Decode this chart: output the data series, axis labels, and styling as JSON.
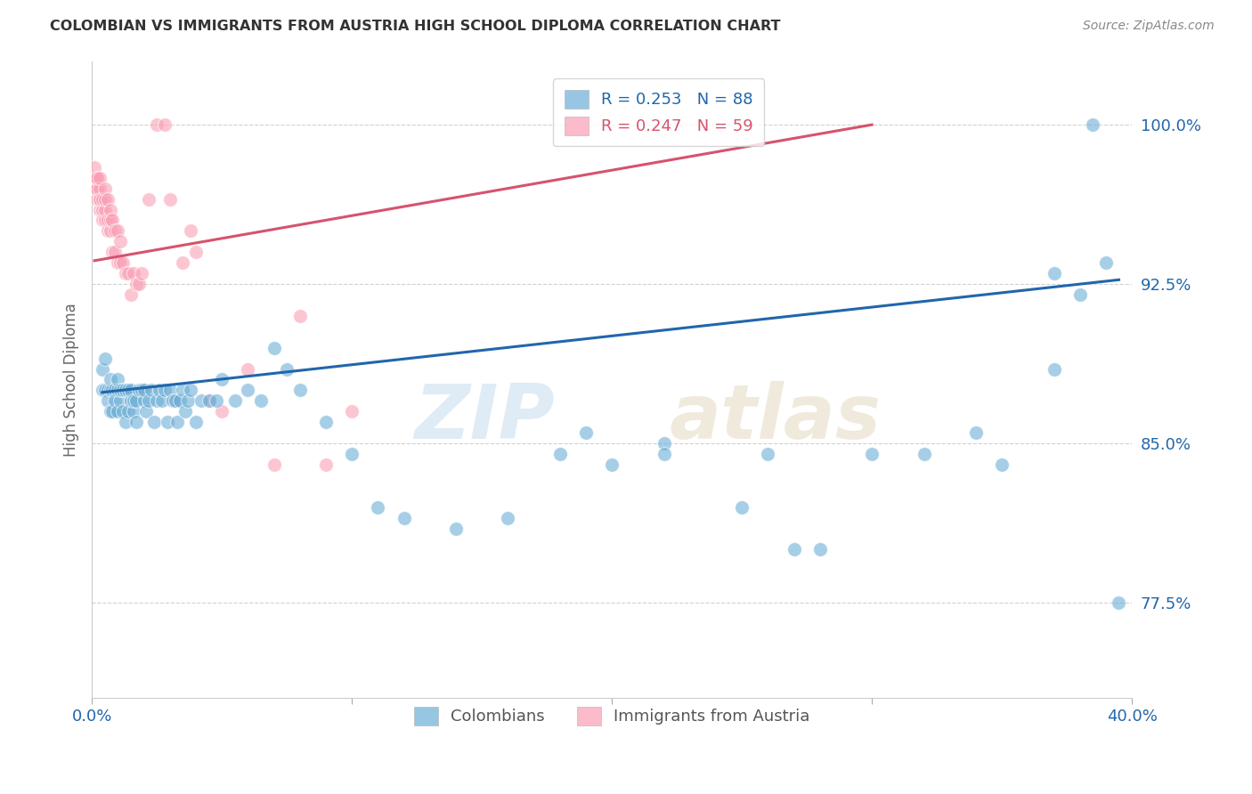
{
  "title": "COLOMBIAN VS IMMIGRANTS FROM AUSTRIA HIGH SCHOOL DIPLOMA CORRELATION CHART",
  "source": "Source: ZipAtlas.com",
  "ylabel": "High School Diploma",
  "ytick_labels": [
    "77.5%",
    "85.0%",
    "92.5%",
    "100.0%"
  ],
  "ytick_values": [
    0.775,
    0.85,
    0.925,
    1.0
  ],
  "xlim": [
    0.0,
    0.4
  ],
  "ylim": [
    0.73,
    1.03
  ],
  "legend_blue_r": "R = 0.253",
  "legend_blue_n": "N = 88",
  "legend_pink_r": "R = 0.247",
  "legend_pink_n": "N = 59",
  "legend_label_blue": "Colombians",
  "legend_label_pink": "Immigrants from Austria",
  "blue_color": "#6baed6",
  "pink_color": "#fa9fb5",
  "blue_line_color": "#2166ac",
  "pink_line_color": "#d6536d",
  "watermark_zip": "ZIP",
  "watermark_atlas": "atlas",
  "blue_scatter_x": [
    0.004,
    0.004,
    0.005,
    0.005,
    0.006,
    0.006,
    0.007,
    0.007,
    0.007,
    0.008,
    0.008,
    0.009,
    0.009,
    0.01,
    0.01,
    0.01,
    0.011,
    0.011,
    0.012,
    0.012,
    0.013,
    0.013,
    0.014,
    0.014,
    0.015,
    0.015,
    0.016,
    0.016,
    0.017,
    0.017,
    0.018,
    0.019,
    0.02,
    0.02,
    0.021,
    0.022,
    0.023,
    0.024,
    0.025,
    0.026,
    0.027,
    0.028,
    0.029,
    0.03,
    0.031,
    0.032,
    0.033,
    0.034,
    0.035,
    0.036,
    0.037,
    0.038,
    0.04,
    0.042,
    0.045,
    0.048,
    0.05,
    0.055,
    0.06,
    0.065,
    0.07,
    0.075,
    0.08,
    0.09,
    0.1,
    0.11,
    0.12,
    0.14,
    0.16,
    0.18,
    0.2,
    0.22,
    0.25,
    0.27,
    0.3,
    0.32,
    0.35,
    0.37,
    0.38,
    0.385,
    0.39,
    0.395,
    0.37,
    0.34,
    0.28,
    0.26,
    0.22,
    0.19
  ],
  "blue_scatter_y": [
    0.885,
    0.875,
    0.89,
    0.875,
    0.875,
    0.87,
    0.875,
    0.865,
    0.88,
    0.875,
    0.865,
    0.875,
    0.87,
    0.875,
    0.865,
    0.88,
    0.87,
    0.875,
    0.865,
    0.875,
    0.875,
    0.86,
    0.875,
    0.865,
    0.87,
    0.875,
    0.865,
    0.87,
    0.87,
    0.86,
    0.875,
    0.875,
    0.87,
    0.875,
    0.865,
    0.87,
    0.875,
    0.86,
    0.87,
    0.875,
    0.87,
    0.875,
    0.86,
    0.875,
    0.87,
    0.87,
    0.86,
    0.87,
    0.875,
    0.865,
    0.87,
    0.875,
    0.86,
    0.87,
    0.87,
    0.87,
    0.88,
    0.87,
    0.875,
    0.87,
    0.895,
    0.885,
    0.875,
    0.86,
    0.845,
    0.82,
    0.815,
    0.81,
    0.815,
    0.845,
    0.84,
    0.85,
    0.82,
    0.8,
    0.845,
    0.845,
    0.84,
    0.93,
    0.92,
    1.0,
    0.935,
    0.775,
    0.885,
    0.855,
    0.8,
    0.845,
    0.845,
    0.855
  ],
  "pink_scatter_x": [
    0.001,
    0.001,
    0.001,
    0.001,
    0.002,
    0.002,
    0.002,
    0.002,
    0.002,
    0.003,
    0.003,
    0.003,
    0.003,
    0.003,
    0.004,
    0.004,
    0.004,
    0.005,
    0.005,
    0.005,
    0.005,
    0.006,
    0.006,
    0.006,
    0.007,
    0.007,
    0.007,
    0.008,
    0.008,
    0.009,
    0.009,
    0.01,
    0.01,
    0.011,
    0.011,
    0.012,
    0.013,
    0.014,
    0.015,
    0.016,
    0.017,
    0.018,
    0.019,
    0.02,
    0.022,
    0.025,
    0.028,
    0.03,
    0.032,
    0.035,
    0.038,
    0.04,
    0.045,
    0.05,
    0.06,
    0.07,
    0.08,
    0.09,
    0.1
  ],
  "pink_scatter_y": [
    0.975,
    0.97,
    0.975,
    0.98,
    0.965,
    0.97,
    0.975,
    0.97,
    0.975,
    0.96,
    0.965,
    0.97,
    0.965,
    0.975,
    0.955,
    0.96,
    0.965,
    0.955,
    0.96,
    0.965,
    0.97,
    0.95,
    0.955,
    0.965,
    0.95,
    0.955,
    0.96,
    0.94,
    0.955,
    0.94,
    0.95,
    0.935,
    0.95,
    0.935,
    0.945,
    0.935,
    0.93,
    0.93,
    0.92,
    0.93,
    0.925,
    0.925,
    0.93,
    0.875,
    0.965,
    1.0,
    1.0,
    0.965,
    0.87,
    0.935,
    0.95,
    0.94,
    0.87,
    0.865,
    0.885,
    0.84,
    0.91,
    0.84,
    0.865
  ],
  "blue_line_x": [
    0.004,
    0.395
  ],
  "blue_line_y": [
    0.874,
    0.927
  ],
  "pink_line_x": [
    0.001,
    0.3
  ],
  "pink_line_y": [
    0.936,
    1.0
  ]
}
